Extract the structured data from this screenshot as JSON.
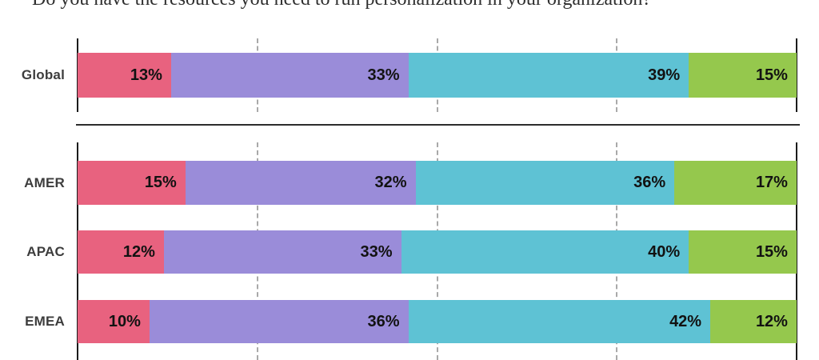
{
  "chart_data": {
    "type": "bar",
    "stacked": true,
    "orientation": "horizontal",
    "title": "Do you have the resources you need to run personalization in your organization?",
    "value_suffix": "%",
    "xlim": [
      0,
      100
    ],
    "gridlines_pct": [
      25,
      50,
      75
    ],
    "grid": "dashed-vertical-lines",
    "legend": "none",
    "segment_colors": [
      "#e8627f",
      "#9a8cd9",
      "#5ec2d4",
      "#95c84d"
    ],
    "sections": [
      {
        "name": "global",
        "categories": [
          "Global"
        ],
        "rows": [
          [
            13,
            33,
            39,
            15
          ]
        ]
      },
      {
        "name": "regions",
        "categories": [
          "AMER",
          "APAC",
          "EMEA"
        ],
        "rows": [
          [
            15,
            32,
            36,
            17
          ],
          [
            12,
            33,
            40,
            15
          ],
          [
            10,
            36,
            42,
            12
          ]
        ]
      }
    ]
  }
}
